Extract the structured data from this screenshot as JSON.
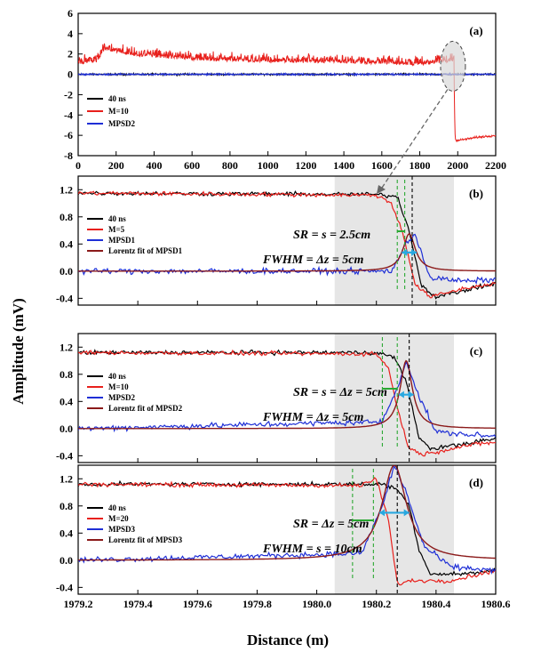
{
  "figure": {
    "y_axis_label": "Amplitude (mV)",
    "x_axis_label": "Distance (m)"
  },
  "chart_data": [
    {
      "type": "line",
      "panel": "(a)",
      "xlim": [
        0,
        2200
      ],
      "ylim": [
        -8,
        6
      ],
      "x_ticks": [
        "0",
        "200",
        "400",
        "600",
        "800",
        "1000",
        "1200",
        "1400",
        "1600",
        "1800",
        "2000",
        "2200"
      ],
      "y_ticks": [
        "6",
        "4",
        "2",
        "0",
        "-2",
        "-4",
        "-6",
        "-8"
      ],
      "legend": [
        "40 ns",
        "M=10",
        "MPSD2"
      ],
      "colors": [
        "#000000",
        "#e8201c",
        "#1f2fd6"
      ],
      "series": [
        {
          "name": "40 ns",
          "x": [
            0,
            1985,
            2200
          ],
          "y": [
            0.0,
            0.0,
            0.0
          ]
        },
        {
          "name": "M=10",
          "x": [
            0,
            100,
            140,
            300,
            600,
            1000,
            1400,
            1800,
            1980,
            1985,
            2000,
            2100,
            2200
          ],
          "y": [
            1.2,
            1.4,
            2.6,
            2.0,
            1.6,
            1.4,
            1.3,
            1.1,
            1.5,
            -6.5,
            -6.5,
            -6.2,
            -6.0
          ]
        },
        {
          "name": "MPSD2",
          "x": [
            0,
            2200
          ],
          "y": [
            0.0,
            0.0
          ]
        }
      ],
      "annotation": "dashed ellipse around the fiber end near 1980 m"
    },
    {
      "type": "line",
      "panel": "(b)",
      "xlim": [
        1979.2,
        1980.6
      ],
      "ylim": [
        -0.5,
        1.4
      ],
      "y_ticks": [
        "1.2",
        "0.8",
        "0.4",
        "0.0",
        "-0.4"
      ],
      "legend": [
        "40 ns",
        "M=5",
        "MPSD1",
        "Lorentz fit of MPSD1"
      ],
      "colors": [
        "#000000",
        "#e8201c",
        "#1f2fd6",
        "#8b1a1a"
      ],
      "annotations": [
        "SR = s = 2.5cm",
        "FWHM = Δz = 5cm"
      ],
      "shaded_region": [
        1980.06,
        1980.46
      ],
      "series": [
        {
          "name": "40 ns",
          "x": [
            1979.2,
            1980.2,
            1980.27,
            1980.31,
            1980.35,
            1980.4,
            1980.5,
            1980.6
          ],
          "y": [
            1.15,
            1.13,
            1.1,
            0.6,
            -0.2,
            -0.38,
            -0.28,
            -0.18
          ]
        },
        {
          "name": "M=5",
          "x": [
            1979.2,
            1980.2,
            1980.25,
            1980.29,
            1980.33,
            1980.38,
            1980.5,
            1980.6
          ],
          "y": [
            1.15,
            1.12,
            1.0,
            0.55,
            -0.2,
            -0.38,
            -0.25,
            -0.18
          ]
        },
        {
          "name": "MPSD1",
          "x": [
            1979.2,
            1980.25,
            1980.3,
            1980.33,
            1980.38,
            1980.5,
            1980.6
          ],
          "y": [
            0.0,
            0.0,
            0.4,
            0.55,
            -0.1,
            -0.15,
            -0.12
          ]
        },
        {
          "name": "Lorentz fit of MPSD1",
          "x0": 1980.31,
          "fwhm": 0.05,
          "amplitude": 0.55
        }
      ]
    },
    {
      "type": "line",
      "panel": "(c)",
      "xlim": [
        1979.2,
        1980.6
      ],
      "ylim": [
        -0.5,
        1.4
      ],
      "y_ticks": [
        "1.2",
        "0.8",
        "0.4",
        "0.0",
        "-0.4"
      ],
      "legend": [
        "40 ns",
        "M=10",
        "MPSD2",
        "Lorentz fit of MPSD2"
      ],
      "colors": [
        "#000000",
        "#e8201c",
        "#1f2fd6",
        "#8b1a1a"
      ],
      "annotations": [
        "SR = s = Δz = 5cm",
        "FWHM = Δz = 5cm"
      ],
      "shaded_region": [
        1980.06,
        1980.46
      ],
      "series": [
        {
          "name": "40 ns",
          "x": [
            1979.2,
            1980.2,
            1980.26,
            1980.3,
            1980.34,
            1980.38,
            1980.5,
            1980.6
          ],
          "y": [
            1.12,
            1.12,
            1.05,
            0.7,
            -0.1,
            -0.3,
            -0.22,
            -0.15
          ]
        },
        {
          "name": "M=10",
          "x": [
            1979.2,
            1980.2,
            1980.24,
            1980.27,
            1980.31,
            1980.36,
            1980.5,
            1980.6
          ],
          "y": [
            1.12,
            1.1,
            0.9,
            0.3,
            -0.3,
            -0.38,
            -0.25,
            -0.2
          ]
        },
        {
          "name": "MPSD2",
          "x": [
            1979.2,
            1980.22,
            1980.27,
            1980.3,
            1980.34,
            1980.4,
            1980.6
          ],
          "y": [
            0.0,
            0.1,
            0.6,
            1.0,
            0.5,
            -0.05,
            -0.12
          ]
        },
        {
          "name": "Lorentz fit of MPSD2",
          "x0": 1980.3,
          "fwhm": 0.05,
          "amplitude": 1.0
        }
      ]
    },
    {
      "type": "line",
      "panel": "(d)",
      "xlim": [
        1979.2,
        1980.6
      ],
      "ylim": [
        -0.5,
        1.4
      ],
      "x_ticks": [
        "1979.2",
        "1979.4",
        "1979.6",
        "1979.8",
        "1980.0",
        "1980.2",
        "1980.4",
        "1980.6"
      ],
      "y_ticks": [
        "1.2",
        "0.8",
        "0.4",
        "0.0",
        "-0.4"
      ],
      "legend": [
        "40 ns",
        "M=20",
        "MPSD3",
        "Lorentz fit of MPSD3"
      ],
      "colors": [
        "#000000",
        "#e8201c",
        "#1f2fd6",
        "#8b1a1a"
      ],
      "annotations": [
        "SR = Δz = 5cm",
        "FWHM = s = 10cm"
      ],
      "shaded_region": [
        1980.06,
        1980.46
      ],
      "series": [
        {
          "name": "40 ns",
          "x": [
            1979.2,
            1980.22,
            1980.27,
            1980.31,
            1980.34,
            1980.38,
            1980.5,
            1980.6
          ],
          "y": [
            1.12,
            1.12,
            1.05,
            0.8,
            0.2,
            -0.2,
            -0.2,
            -0.15
          ]
        },
        {
          "name": "M=20",
          "x": [
            1979.2,
            1980.15,
            1980.2,
            1980.24,
            1980.27,
            1980.32,
            1980.45,
            1980.6
          ],
          "y": [
            1.12,
            1.1,
            1.2,
            0.6,
            -0.35,
            -0.3,
            -0.3,
            -0.15
          ]
        },
        {
          "name": "MPSD3",
          "x": [
            1979.2,
            1980.15,
            1980.22,
            1980.26,
            1980.3,
            1980.36,
            1980.45,
            1980.6
          ],
          "y": [
            0.0,
            0.1,
            0.8,
            1.4,
            1.0,
            0.2,
            -0.1,
            -0.15
          ]
        },
        {
          "name": "Lorentz fit of MPSD3",
          "x0": 1980.26,
          "fwhm": 0.1,
          "amplitude": 1.4
        }
      ]
    }
  ]
}
